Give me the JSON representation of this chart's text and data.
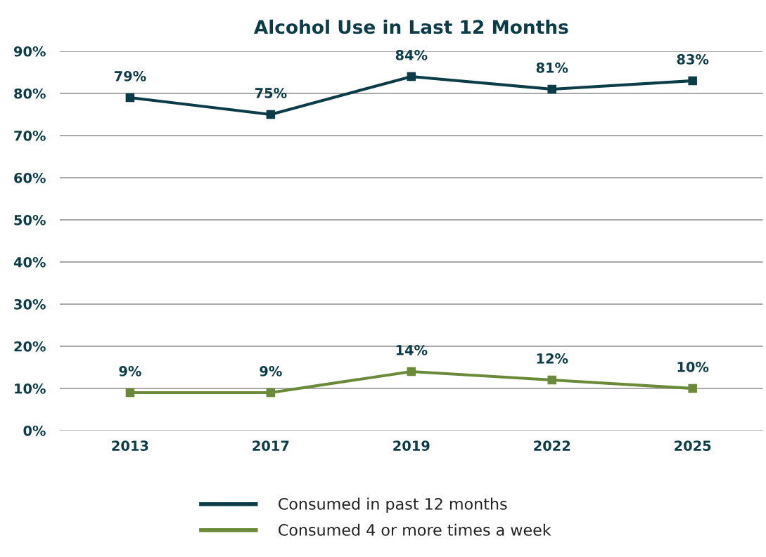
{
  "chart_data": {
    "type": "line",
    "title": "Alcohol Use in Last 12 Months",
    "categories": [
      "2013",
      "2017",
      "2019",
      "2022",
      "2025"
    ],
    "series": [
      {
        "name": "Consumed in past 12 months",
        "color": "#0b3c47",
        "values": [
          79,
          75,
          84,
          81,
          83
        ],
        "value_labels": [
          "79%",
          "75%",
          "84%",
          "81%",
          "83%"
        ]
      },
      {
        "name": "Consumed 4 or more times a week",
        "color": "#6a8a3a",
        "values": [
          9,
          9,
          14,
          12,
          10
        ],
        "value_labels": [
          "9%",
          "9%",
          "14%",
          "12%",
          "10%"
        ]
      }
    ],
    "ylim": [
      0,
      90
    ],
    "yticks": [
      {
        "value": 0,
        "label": "0%"
      },
      {
        "value": 10,
        "label": "10%"
      },
      {
        "value": 20,
        "label": "20%"
      },
      {
        "value": 30,
        "label": "30%"
      },
      {
        "value": 40,
        "label": "40%"
      },
      {
        "value": 50,
        "label": "50%"
      },
      {
        "value": 60,
        "label": "60%"
      },
      {
        "value": 70,
        "label": "70%"
      },
      {
        "value": 80,
        "label": "80%"
      },
      {
        "value": 90,
        "label": "90%"
      }
    ],
    "grid": "y",
    "legend": "bottom",
    "marker": "square",
    "line_style": "solid"
  }
}
